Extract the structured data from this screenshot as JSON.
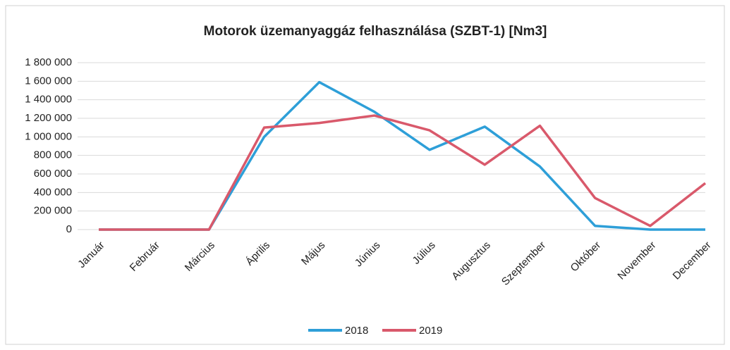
{
  "chart_data": {
    "type": "line",
    "title": "Motorok üzemanyaggáz felhasználása (SZBT-1) [Nm3]",
    "categories": [
      "Január",
      "Február",
      "Március",
      "Április",
      "Május",
      "Június",
      "Július",
      "Augusztus",
      "Szeptember",
      "Október",
      "November",
      "December"
    ],
    "series": [
      {
        "name": "2018",
        "color": "#2e9fd8",
        "values": [
          0,
          0,
          0,
          1000000,
          1590000,
          1270000,
          860000,
          1110000,
          680000,
          40000,
          0,
          0
        ]
      },
      {
        "name": "2019",
        "color": "#d9596b",
        "values": [
          0,
          0,
          0,
          1100000,
          1150000,
          1230000,
          1070000,
          700000,
          1120000,
          340000,
          40000,
          500000
        ]
      }
    ],
    "ylim": [
      0,
      1800000
    ],
    "yticks": [
      0,
      {
        "value": 200000,
        "label": "200 000"
      },
      {
        "value": 400000,
        "label": "400 000"
      },
      {
        "value": 600000,
        "label": "600 000"
      },
      {
        "value": 800000,
        "label": "800 000"
      },
      {
        "value": 1000000,
        "label": "1 000 000"
      },
      {
        "value": 1200000,
        "label": "1 200 000"
      },
      {
        "value": 1400000,
        "label": "1 400 000"
      },
      {
        "value": 1600000,
        "label": "1 600 000"
      },
      {
        "value": 1800000,
        "label": "1 800 000"
      }
    ],
    "grid": true,
    "legend": "bottom"
  }
}
